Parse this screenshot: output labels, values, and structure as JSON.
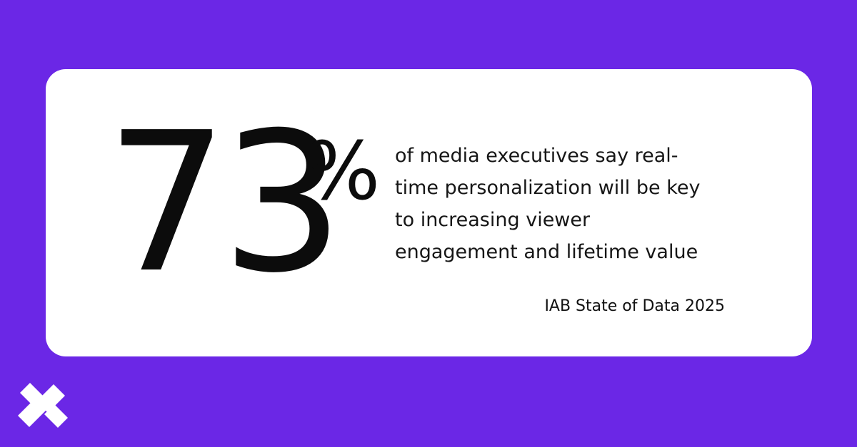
{
  "stat": {
    "number": "73",
    "unit": "%",
    "description_lines": [
      "of media executives say real-",
      "time personalization will be key",
      "to increasing viewer",
      "engagement and lifetime value"
    ],
    "source": "IAB State of Data 2025"
  },
  "logo": {
    "icon": "x-logo-icon",
    "color": "#ffffff"
  },
  "colors": {
    "background": "#6b27e6",
    "card": "#ffffff",
    "text": "#0c0c0c"
  }
}
